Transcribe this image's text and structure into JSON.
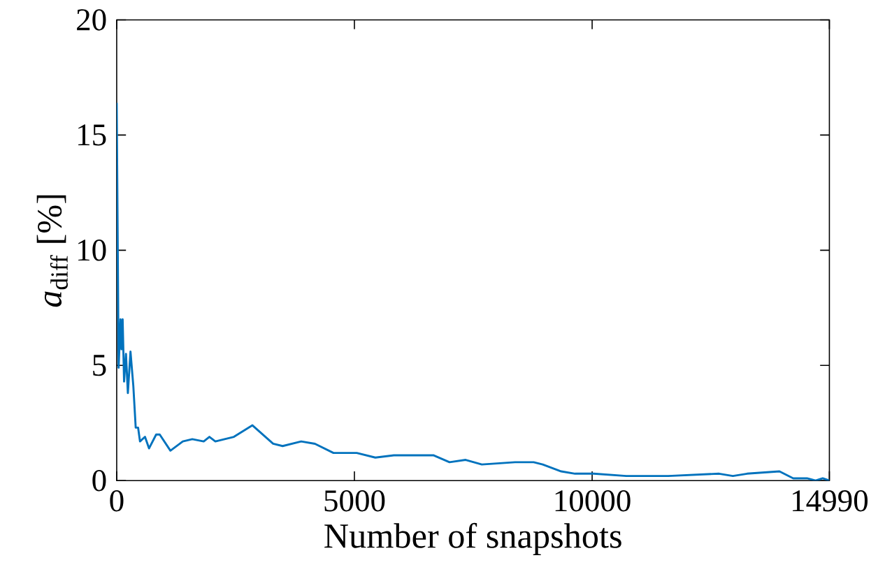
{
  "chart_data": {
    "type": "line",
    "xlabel": "Number of snapshots",
    "ylabel": "*a*$_{diff}$ [%]",
    "x": [
      0,
      40,
      80,
      100,
      125,
      155,
      195,
      235,
      290,
      350,
      400,
      450,
      490,
      595,
      680,
      830,
      905,
      1130,
      1390,
      1590,
      1830,
      1950,
      2075,
      2270,
      2465,
      2855,
      3290,
      3490,
      3880,
      4170,
      4560,
      5050,
      5440,
      5830,
      6660,
      7000,
      7340,
      7680,
      8380,
      8770,
      8960,
      9350,
      9640,
      10030,
      10720,
      11600,
      12670,
      12960,
      13260,
      13940,
      14230,
      14520,
      14700,
      14850,
      14990
    ],
    "series": [
      {
        "color": "#0072bd",
        "values": [
          16.4,
          4.9,
          7.0,
          5.7,
          7.0,
          4.3,
          5.5,
          3.8,
          5.6,
          4.1,
          2.3,
          2.3,
          1.7,
          1.9,
          1.4,
          2.0,
          2.0,
          1.3,
          1.7,
          1.8,
          1.7,
          1.9,
          1.7,
          1.8,
          1.9,
          2.4,
          1.6,
          1.5,
          1.7,
          1.6,
          1.2,
          1.2,
          1.0,
          1.1,
          1.1,
          0.8,
          0.9,
          0.7,
          0.8,
          0.8,
          0.7,
          0.4,
          0.3,
          0.3,
          0.2,
          0.2,
          0.3,
          0.2,
          0.3,
          0.4,
          0.1,
          0.1,
          0.0,
          0.1,
          0.0
        ]
      }
    ],
    "xlim": [
      0,
      14990
    ],
    "ylim": [
      0,
      20
    ],
    "xticks": [
      0,
      5000,
      10000,
      14990
    ],
    "yticks": [
      0,
      5,
      10,
      15,
      20
    ],
    "marker": "none",
    "line_style": "solid"
  }
}
